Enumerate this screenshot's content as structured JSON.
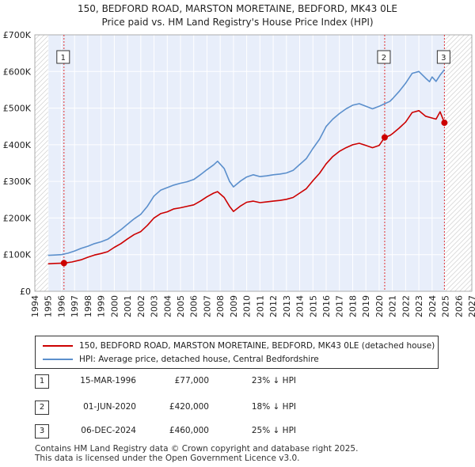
{
  "title": {
    "line1": "150, BEDFORD ROAD, MARSTON MORETAINE, BEDFORD, MK43 0LE",
    "line2": "Price paid vs. HM Land Registry's House Price Index (HPI)"
  },
  "colors": {
    "price": "#cc0000",
    "hpi": "#5b8fcc",
    "band": "#e8eefa",
    "vline": "#e03030"
  },
  "legend": {
    "price_label": "150, BEDFORD ROAD, MARSTON MORETAINE, BEDFORD, MK43 0LE (detached house)",
    "hpi_label": "HPI: Average price, detached house, Central Bedfordshire"
  },
  "transactions": [
    {
      "num": "1",
      "date": "15-MAR-1996",
      "price": "£77,000",
      "hpi": "23% ↓ HPI",
      "year": 1996.2,
      "value": 77000
    },
    {
      "num": "2",
      "date": "01-JUN-2020",
      "price": "£420,000",
      "hpi": "18% ↓ HPI",
      "year": 2020.42,
      "value": 420000
    },
    {
      "num": "3",
      "date": "06-DEC-2024",
      "price": "£460,000",
      "hpi": "25% ↓ HPI",
      "year": 2024.93,
      "value": 460000
    }
  ],
  "footer": {
    "line1": "Contains HM Land Registry data © Crown copyright and database right 2025.",
    "line2": "This data is licensed under the Open Government Licence v3.0."
  },
  "chart_data": {
    "type": "line",
    "title": "Price paid vs. HM Land Registry's House Price Index (HPI)",
    "xlim": [
      1994,
      2027
    ],
    "ylim": [
      0,
      700000
    ],
    "x_ticks": [
      1994,
      1995,
      1996,
      1997,
      1998,
      1999,
      2000,
      2001,
      2002,
      2003,
      2004,
      2005,
      2006,
      2007,
      2008,
      2009,
      2010,
      2011,
      2012,
      2013,
      2014,
      2015,
      2016,
      2017,
      2018,
      2019,
      2020,
      2021,
      2022,
      2023,
      2024,
      2025,
      2026,
      2027
    ],
    "y_ticks": [
      0,
      100000,
      200000,
      300000,
      400000,
      500000,
      600000,
      700000
    ],
    "y_tick_labels": [
      "£0",
      "£100K",
      "£200K",
      "£300K",
      "£400K",
      "£500K",
      "£600K",
      "£700K"
    ],
    "shaded_ranges": [
      [
        1994,
        1995.0
      ],
      [
        2025.0,
        2027
      ]
    ],
    "series": [
      {
        "name": "150, BEDFORD ROAD, MARSTON MORETAINE, BEDFORD, MK43 0LE (detached house)",
        "points": [
          [
            1995.0,
            75000
          ],
          [
            1995.5,
            76000
          ],
          [
            1996.2,
            77000
          ],
          [
            1996.8,
            80000
          ],
          [
            1997.5,
            86000
          ],
          [
            1998.0,
            93000
          ],
          [
            1998.5,
            99000
          ],
          [
            1999.0,
            103000
          ],
          [
            1999.5,
            108000
          ],
          [
            2000.0,
            120000
          ],
          [
            2000.5,
            130000
          ],
          [
            2001.0,
            143000
          ],
          [
            2001.5,
            155000
          ],
          [
            2002.0,
            163000
          ],
          [
            2002.5,
            180000
          ],
          [
            2003.0,
            200000
          ],
          [
            2003.5,
            212000
          ],
          [
            2004.0,
            217000
          ],
          [
            2004.5,
            225000
          ],
          [
            2005.0,
            228000
          ],
          [
            2005.5,
            232000
          ],
          [
            2006.0,
            236000
          ],
          [
            2006.5,
            246000
          ],
          [
            2007.0,
            258000
          ],
          [
            2007.5,
            268000
          ],
          [
            2007.8,
            272000
          ],
          [
            2008.3,
            256000
          ],
          [
            2008.7,
            232000
          ],
          [
            2009.0,
            218000
          ],
          [
            2009.5,
            232000
          ],
          [
            2010.0,
            243000
          ],
          [
            2010.5,
            246000
          ],
          [
            2011.0,
            242000
          ],
          [
            2011.5,
            244000
          ],
          [
            2012.0,
            246000
          ],
          [
            2012.5,
            248000
          ],
          [
            2013.0,
            251000
          ],
          [
            2013.5,
            256000
          ],
          [
            2014.0,
            268000
          ],
          [
            2014.5,
            280000
          ],
          [
            2015.0,
            302000
          ],
          [
            2015.5,
            322000
          ],
          [
            2016.0,
            348000
          ],
          [
            2016.5,
            368000
          ],
          [
            2017.0,
            382000
          ],
          [
            2017.5,
            392000
          ],
          [
            2018.0,
            400000
          ],
          [
            2018.5,
            404000
          ],
          [
            2019.0,
            398000
          ],
          [
            2019.5,
            392000
          ],
          [
            2020.0,
            398000
          ],
          [
            2020.42,
            420000
          ],
          [
            2020.8,
            425000
          ],
          [
            2021.0,
            430000
          ],
          [
            2021.5,
            445000
          ],
          [
            2022.0,
            462000
          ],
          [
            2022.5,
            488000
          ],
          [
            2023.0,
            493000
          ],
          [
            2023.5,
            478000
          ],
          [
            2024.0,
            473000
          ],
          [
            2024.3,
            470000
          ],
          [
            2024.6,
            490000
          ],
          [
            2024.93,
            460000
          ]
        ]
      },
      {
        "name": "HPI: Average price, detached house, Central Bedfordshire",
        "points": [
          [
            1995.0,
            98000
          ],
          [
            1995.5,
            99000
          ],
          [
            1996.0,
            100000
          ],
          [
            1996.5,
            104000
          ],
          [
            1997.0,
            110000
          ],
          [
            1997.5,
            117000
          ],
          [
            1998.0,
            123000
          ],
          [
            1998.5,
            130000
          ],
          [
            1999.0,
            135000
          ],
          [
            1999.5,
            142000
          ],
          [
            2000.0,
            155000
          ],
          [
            2000.5,
            168000
          ],
          [
            2001.0,
            183000
          ],
          [
            2001.5,
            198000
          ],
          [
            2002.0,
            210000
          ],
          [
            2002.5,
            232000
          ],
          [
            2003.0,
            260000
          ],
          [
            2003.5,
            276000
          ],
          [
            2004.0,
            283000
          ],
          [
            2004.5,
            290000
          ],
          [
            2005.0,
            295000
          ],
          [
            2005.5,
            299000
          ],
          [
            2006.0,
            305000
          ],
          [
            2006.5,
            318000
          ],
          [
            2007.0,
            332000
          ],
          [
            2007.5,
            345000
          ],
          [
            2007.8,
            355000
          ],
          [
            2008.3,
            335000
          ],
          [
            2008.7,
            300000
          ],
          [
            2009.0,
            285000
          ],
          [
            2009.5,
            300000
          ],
          [
            2010.0,
            312000
          ],
          [
            2010.5,
            318000
          ],
          [
            2011.0,
            313000
          ],
          [
            2011.5,
            315000
          ],
          [
            2012.0,
            318000
          ],
          [
            2012.5,
            320000
          ],
          [
            2013.0,
            323000
          ],
          [
            2013.5,
            330000
          ],
          [
            2014.0,
            346000
          ],
          [
            2014.5,
            362000
          ],
          [
            2015.0,
            390000
          ],
          [
            2015.5,
            415000
          ],
          [
            2016.0,
            450000
          ],
          [
            2016.5,
            470000
          ],
          [
            2017.0,
            485000
          ],
          [
            2017.5,
            498000
          ],
          [
            2018.0,
            508000
          ],
          [
            2018.5,
            512000
          ],
          [
            2019.0,
            505000
          ],
          [
            2019.5,
            498000
          ],
          [
            2020.0,
            505000
          ],
          [
            2020.42,
            512000
          ],
          [
            2020.8,
            518000
          ],
          [
            2021.0,
            525000
          ],
          [
            2021.5,
            545000
          ],
          [
            2022.0,
            568000
          ],
          [
            2022.5,
            595000
          ],
          [
            2023.0,
            600000
          ],
          [
            2023.5,
            582000
          ],
          [
            2023.8,
            572000
          ],
          [
            2024.0,
            585000
          ],
          [
            2024.3,
            573000
          ],
          [
            2024.6,
            590000
          ],
          [
            2024.93,
            605000
          ]
        ]
      }
    ]
  }
}
